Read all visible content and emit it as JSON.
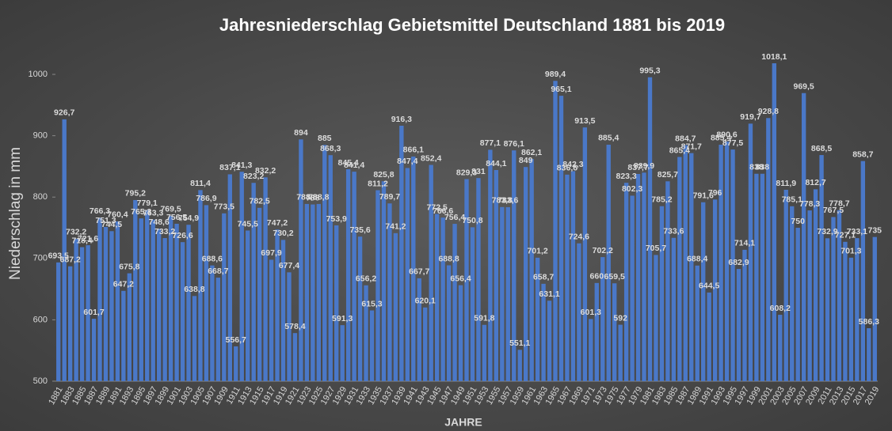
{
  "chart_data": {
    "type": "bar",
    "title": "Jahresniederschlag Gebietsmittel Deutschland 1881 bis 2019",
    "x_label": "JAHRE",
    "y_label": "Niederschlag in mm",
    "color": "#4a78c8",
    "ylim": [
      500,
      1040
    ],
    "yticks": [
      500,
      600,
      700,
      800,
      900,
      1000
    ],
    "categories": [
      "1881",
      null,
      "1883",
      null,
      "1885",
      null,
      "1887",
      null,
      "1889",
      null,
      "1891",
      null,
      "1893",
      null,
      "1895",
      null,
      "1897",
      null,
      "1899",
      null,
      "1901",
      null,
      "1903",
      null,
      "1905",
      null,
      "1907",
      null,
      "1909",
      null,
      "1911",
      null,
      "1913",
      null,
      "1915",
      null,
      "1917",
      null,
      "1919",
      null,
      "1921",
      null,
      "1923",
      null,
      "1925",
      null,
      "1927",
      null,
      "1929",
      null,
      "1931",
      null,
      "1933",
      null,
      "1935",
      null,
      "1937",
      null,
      "1939",
      null,
      "1941",
      null,
      "1943",
      null,
      "1945",
      null,
      "1947",
      null,
      "1949",
      null,
      "1951",
      null,
      "1953",
      null,
      "1955",
      null,
      "1957",
      null,
      "1959",
      null,
      "1961",
      null,
      "1963",
      null,
      "1965",
      null,
      "1967",
      null,
      "1969",
      null,
      "1971",
      null,
      "1973",
      null,
      "1975",
      null,
      "1977",
      null,
      "1979",
      null,
      "1981",
      null,
      "1983",
      null,
      "1985",
      null,
      "1987",
      null,
      "1989",
      null,
      "1991",
      null,
      "1993",
      null,
      "1995",
      null,
      "1997",
      null,
      "1999",
      null,
      "2001",
      null,
      "2003",
      null,
      "2005",
      null,
      "2007",
      null,
      "2009",
      null,
      "2011",
      null,
      "2013",
      null,
      "2015",
      null,
      "2017",
      null,
      "2019"
    ],
    "values": [
      693.5,
      926.7,
      687.2,
      732.2,
      718.4,
      721.6,
      601.7,
      766.3,
      751.3,
      744.5,
      760.4,
      647.2,
      675.8,
      795.2,
      765.3,
      779.1,
      763.3,
      748.6,
      733.2,
      769.5,
      756.5,
      726.6,
      754.9,
      638.8,
      811.4,
      786.9,
      688.6,
      668.7,
      773.5,
      837.1,
      556.7,
      841.3,
      745.5,
      823.2,
      782.5,
      832.2,
      697.9,
      747.2,
      730.2,
      677.4,
      578.4,
      894,
      788.8,
      788,
      788.8,
      885,
      868.3,
      753.9,
      591.3,
      845.4,
      841.4,
      735.6,
      656.2,
      615.3,
      811.2,
      825.8,
      789.7,
      741.2,
      916.3,
      847.4,
      866.1,
      667.7,
      620.1,
      852.4,
      772.5,
      766.6,
      688.8,
      756.4,
      656.4,
      829.3,
      750.8,
      831,
      591.8,
      877.1,
      844.1,
      783.8,
      783.6,
      876.1,
      551.1,
      849,
      862.1,
      701.2,
      658.7,
      631.1,
      989.4,
      965.1,
      836.6,
      842.3,
      724.6,
      913.5,
      601.3,
      660,
      702.2,
      885.4,
      659.5,
      592,
      823.3,
      802.3,
      837.7,
      839.9,
      995.3,
      705.7,
      785.2,
      825.7,
      733.6,
      865.4,
      884.7,
      871.7,
      688.4,
      791.6,
      644.5,
      796,
      885.4,
      890.6,
      877.5,
      682.9,
      714.1,
      919.7,
      838,
      838,
      928.8,
      1018.1,
      608.2,
      811.9,
      785.1,
      750,
      969.5,
      778.3,
      812.7,
      868.5,
      732.9,
      767.5,
      778.7,
      727.1,
      701.3,
      733.1,
      858.7,
      586.3,
      735
    ],
    "value_labels": [
      "693,5",
      "926,7",
      "687,2",
      "732,2",
      "718,4",
      "721,6",
      "601,7",
      "766,3",
      "751,3",
      "744,5",
      "760,4",
      "647,2",
      "675,8",
      "795,2",
      "765,3",
      "779,1",
      "763,3",
      "748,6",
      "733,2",
      "769,5",
      "756,5",
      "726,6",
      "754,9",
      "638,8",
      "811,4",
      "786,9",
      "688,6",
      "668,7",
      "773,5",
      "837,1",
      "556,7",
      "841,3",
      "745,5",
      "823,2",
      "782,5",
      "832,2",
      "697,9",
      "747,2",
      "730,2",
      "677,4",
      "578,4",
      "894",
      "788,8",
      "788",
      "788,8",
      "885",
      "868,3",
      "753,9",
      "591,3",
      "845,4",
      "841,4",
      "735,6",
      "656,2",
      "615,3",
      "811,2",
      "825,8",
      "789,7",
      "741,2",
      "916,3",
      "847,4",
      "866,1",
      "667,7",
      "620,1",
      "852,4",
      "772,5",
      "766,6",
      "688,8",
      "756,4",
      "656,4",
      "829,3",
      "750,8",
      "831",
      "591,8",
      "877,1",
      "844,1",
      "783,8",
      "783,6",
      "876,1",
      "551,1",
      "849",
      "862,1",
      "701,2",
      "658,7",
      "631,1",
      "989,4",
      "965,1",
      "836,6",
      "842,3",
      "724,6",
      "913,5",
      "601,3",
      "660",
      "702,2",
      "885,4",
      "659,5",
      "592",
      "823,3",
      "802,3",
      "837,7",
      "839,9",
      "995,3",
      "705,7",
      "785,2",
      "825,7",
      "733,6",
      "865,4",
      "884,7",
      "871,7",
      "688,4",
      "791,6",
      "644,5",
      "796",
      "885,4",
      "890,6",
      "877,5",
      "682,9",
      "714,1",
      "919,7",
      "838",
      "838",
      "928,8",
      "1018,1",
      "608,2",
      "811,9",
      "785,1",
      "750",
      "969,5",
      "778,3",
      "812,7",
      "868,5",
      "732,9",
      "767,5",
      "778,7",
      "727,1",
      "701,3",
      "733,1",
      "858,7",
      "586,3",
      "735"
    ]
  }
}
